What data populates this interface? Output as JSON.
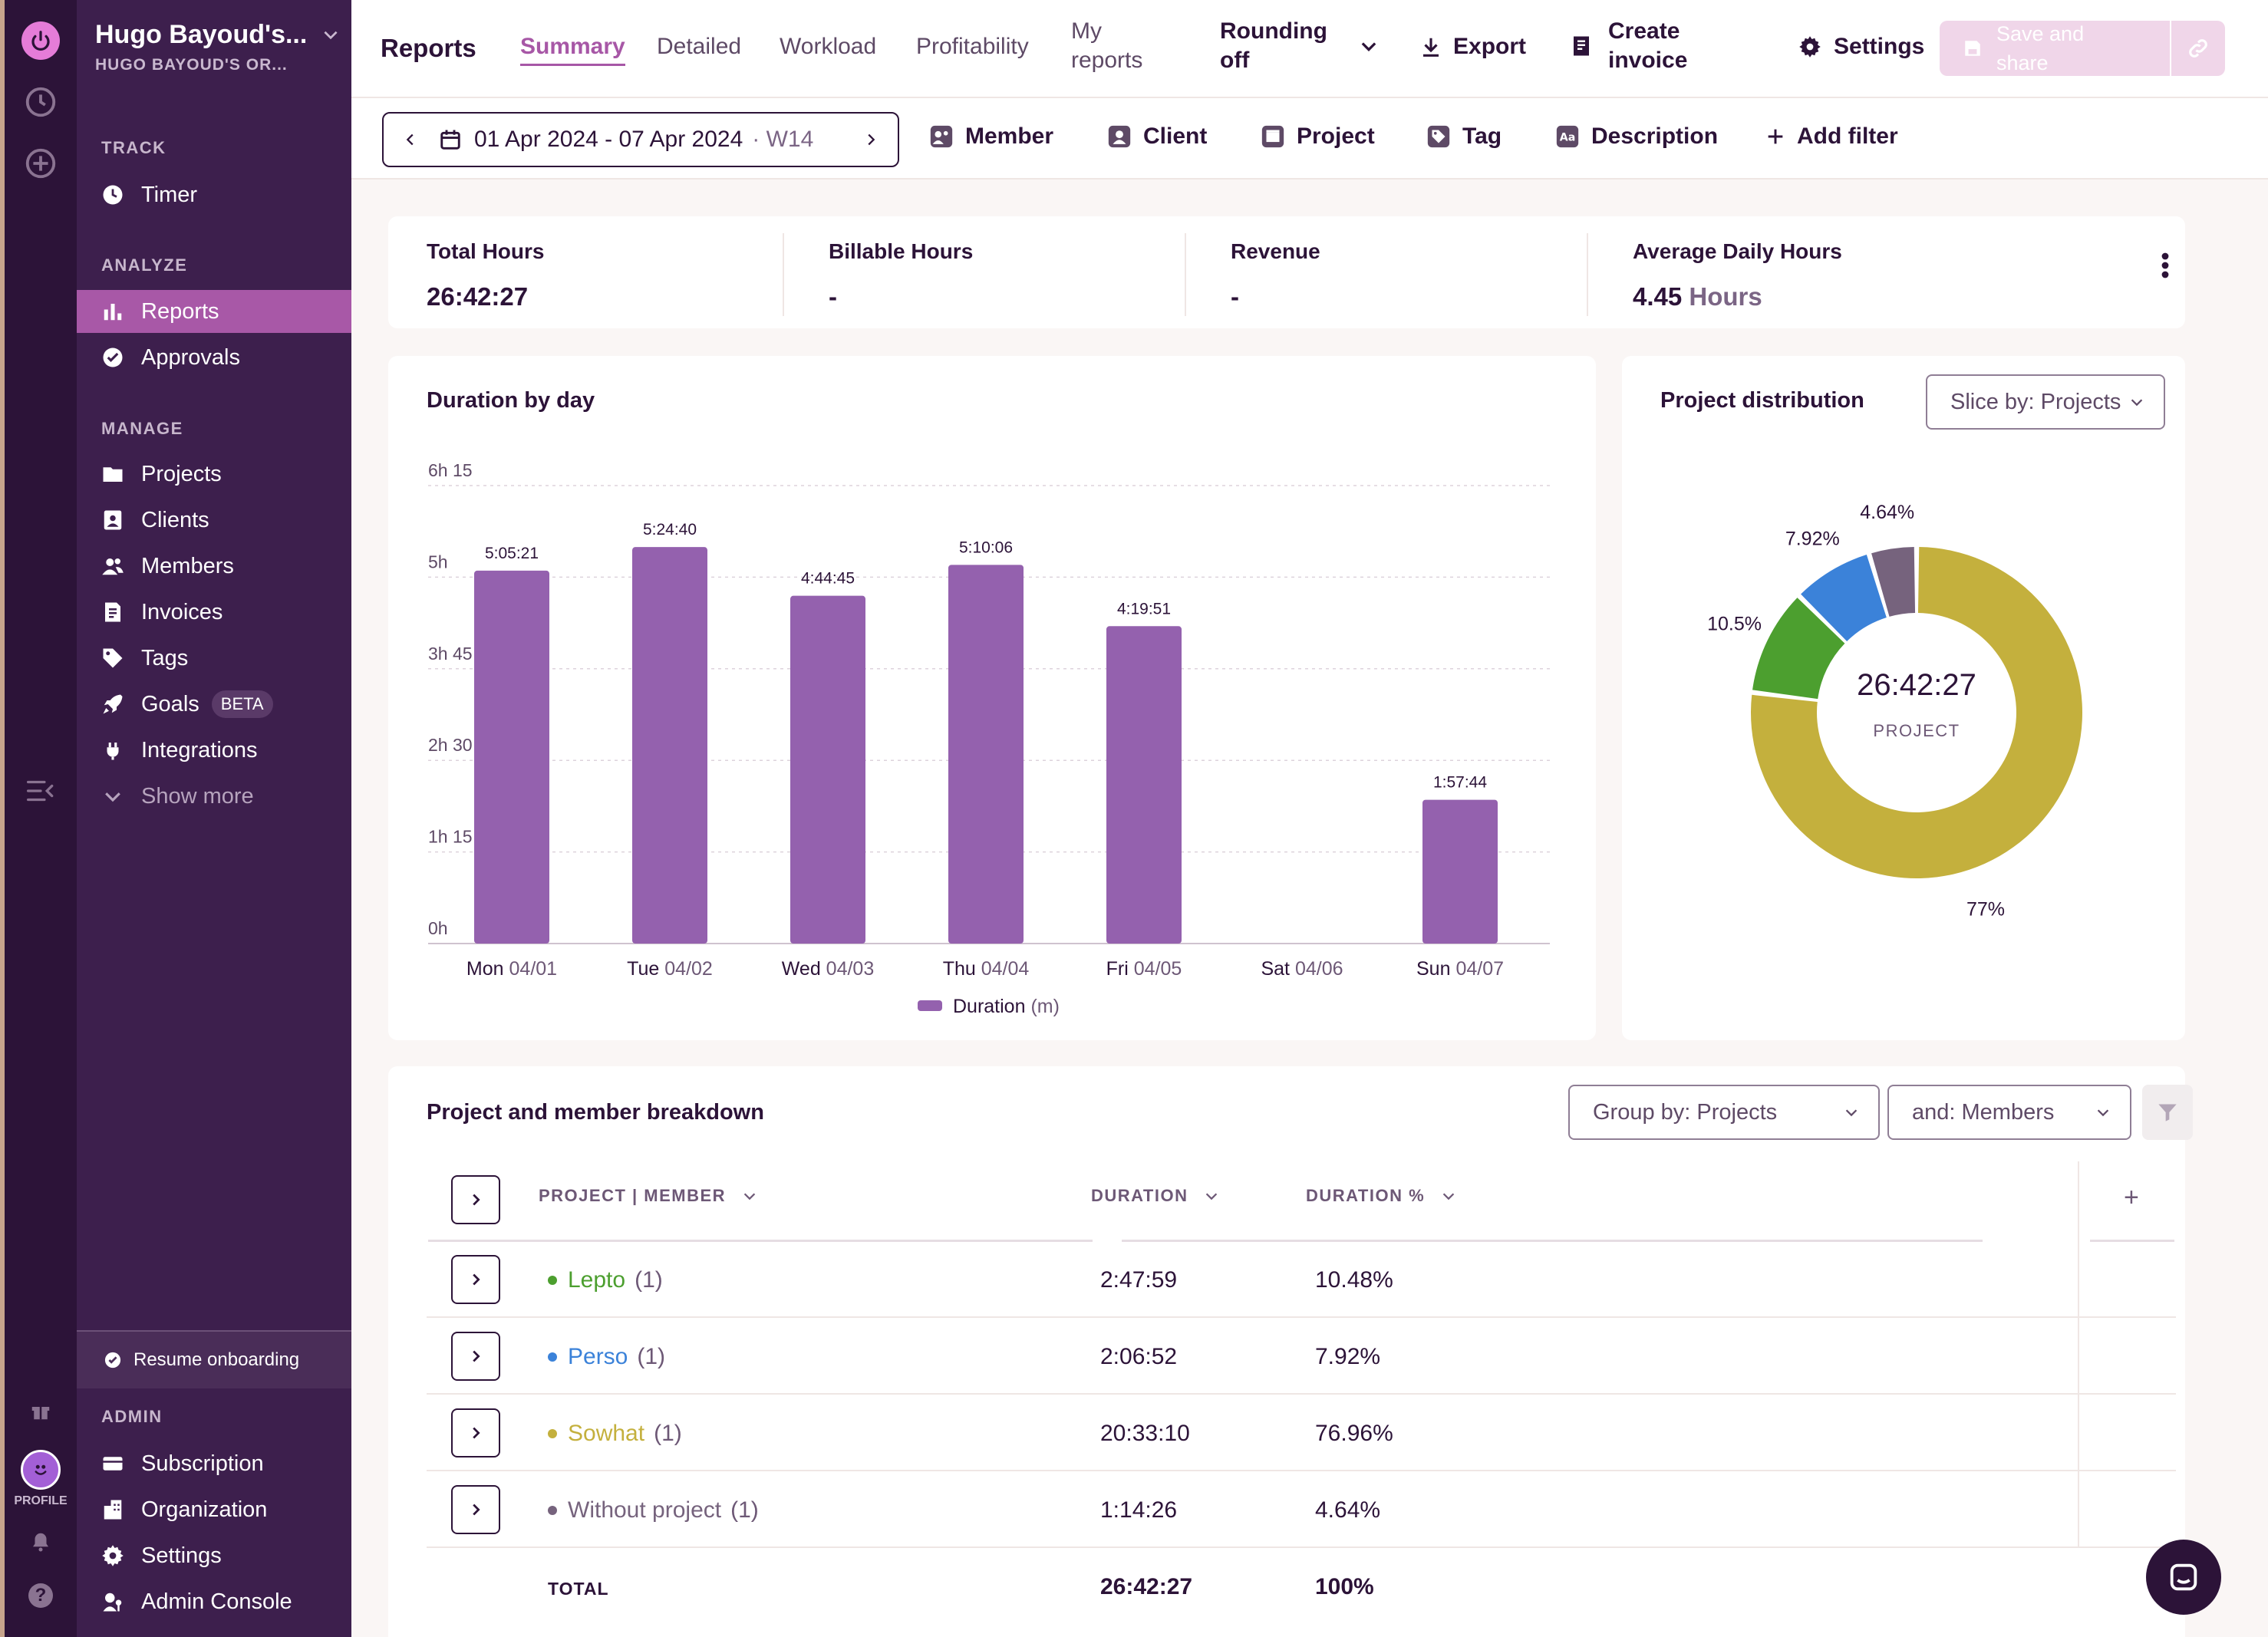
{
  "workspace": {
    "name": "Hugo Bayoud's...",
    "org": "HUGO BAYOUD'S OR..."
  },
  "rail": {
    "profile_label": "PROFILE"
  },
  "sidebar": {
    "track_header": "TRACK",
    "timer": "Timer",
    "analyze_header": "ANALYZE",
    "reports": "Reports",
    "approvals": "Approvals",
    "manage_header": "MANAGE",
    "projects": "Projects",
    "clients": "Clients",
    "members": "Members",
    "invoices": "Invoices",
    "tags": "Tags",
    "goals": "Goals",
    "goals_badge": "BETA",
    "integrations": "Integrations",
    "show_more": "Show more",
    "resume_onboarding": "Resume onboarding",
    "admin_header": "ADMIN",
    "subscription": "Subscription",
    "organization": "Organization",
    "settings": "Settings",
    "admin_console": "Admin Console"
  },
  "topbar": {
    "title": "Reports",
    "tabs": [
      "Summary",
      "Detailed",
      "Workload",
      "Profitability"
    ],
    "my_reports_1": "My",
    "my_reports_2": "reports",
    "rounding_1": "Rounding",
    "rounding_2": "off",
    "export": "Export",
    "create_invoice_1": "Create",
    "create_invoice_2": "invoice",
    "settings": "Settings",
    "save_1": "Save and",
    "save_2": "share"
  },
  "filters": {
    "date_range": "01 Apr 2024 - 07 Apr 2024",
    "week": "· W14",
    "member": "Member",
    "client": "Client",
    "project": "Project",
    "tag": "Tag",
    "description": "Description",
    "add_filter": "Add filter"
  },
  "stats": {
    "total_hours_label": "Total Hours",
    "total_hours": "26:42:27",
    "billable_label": "Billable Hours",
    "billable": "-",
    "revenue_label": "Revenue",
    "revenue": "-",
    "avg_label": "Average Daily Hours",
    "avg_value": "4.45",
    "avg_unit": "Hours"
  },
  "bar_chart_title": "Duration by day",
  "pie_title": "Project distribution",
  "slice_by": "Slice by: Projects",
  "donut_center": {
    "value": "26:42:27",
    "label": "PROJECT"
  },
  "colors": {
    "bar": "#9461ae",
    "accent": "#a757a6",
    "lepto": "#4c9f2f",
    "perso": "#3b82d9",
    "sowhat": "#c4b03d",
    "none": "#76637d"
  },
  "chart_data": [
    {
      "type": "bar",
      "title": "Duration by day",
      "categories_day": [
        "Mon",
        "Tue",
        "Wed",
        "Thu",
        "Fri",
        "Sat",
        "Sun"
      ],
      "categories_date": [
        "04/01",
        "04/02",
        "04/03",
        "04/04",
        "04/05",
        "04/06",
        "04/07"
      ],
      "values_hours": [
        5.089,
        5.411,
        4.746,
        5.168,
        4.331,
        0,
        1.962
      ],
      "labels": [
        "5:05:21",
        "5:24:40",
        "4:44:45",
        "5:10:06",
        "4:19:51",
        "",
        "1:57:44"
      ],
      "y_ticks": [
        "0h",
        "1h 15",
        "2h 30",
        "3h 45",
        "5h",
        "6h 15"
      ],
      "ylim": [
        0,
        6.25
      ],
      "legend": {
        "name": "Duration",
        "unit": "(m)"
      }
    },
    {
      "type": "pie",
      "title": "Project distribution",
      "slices": [
        {
          "name": "Sowhat",
          "value": 77,
          "label": "77%"
        },
        {
          "name": "Lepto",
          "value": 10.5,
          "label": "10.5%"
        },
        {
          "name": "Perso",
          "value": 7.92,
          "label": "7.92%"
        },
        {
          "name": "Without project",
          "value": 4.64,
          "label": "4.64%"
        }
      ]
    }
  ],
  "breakdown": {
    "title": "Project and member breakdown",
    "group_by": "Group by: Projects",
    "and_by": "and: Members",
    "col_project": "PROJECT | MEMBER",
    "col_duration": "DURATION",
    "col_percent": "DURATION %",
    "add_col": "+",
    "rows": [
      {
        "name": "Lepto",
        "count": "(1)",
        "duration": "2:47:59",
        "percent": "10.48%"
      },
      {
        "name": "Perso",
        "count": "(1)",
        "duration": "2:06:52",
        "percent": "7.92%"
      },
      {
        "name": "Sowhat",
        "count": "(1)",
        "duration": "20:33:10",
        "percent": "76.96%"
      },
      {
        "name": "Without project",
        "count": "(1)",
        "duration": "1:14:26",
        "percent": "4.64%"
      }
    ],
    "total_label": "TOTAL",
    "total_duration": "26:42:27",
    "total_percent": "100%"
  }
}
